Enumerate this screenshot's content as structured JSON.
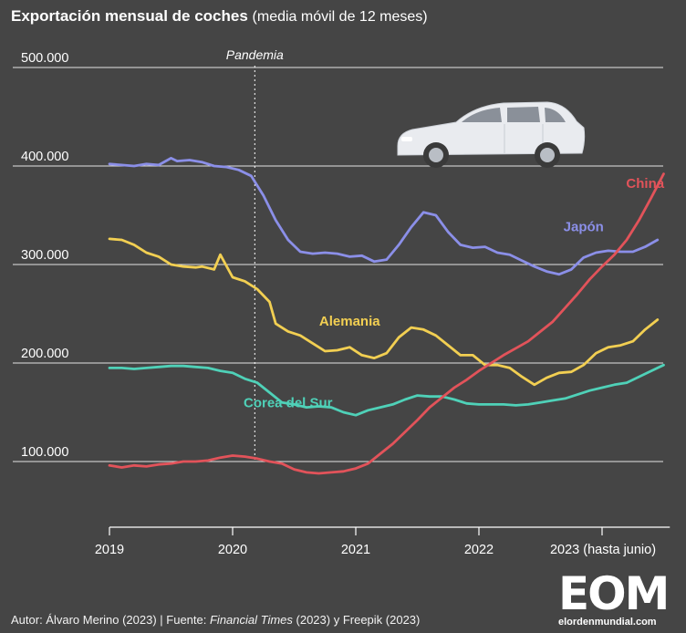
{
  "title": "Exportación mensual de coches",
  "subtitle": "(media móvil de 12 meses)",
  "footer": {
    "author": "Autor: Álvaro Merino (2023) | Fuente: ",
    "source_ft": "Financial Times",
    "source_rest": " (2023) y Freepik (2023)"
  },
  "logo": {
    "mark": "EOM",
    "site": "elordenmundial.com"
  },
  "colors": {
    "background": "#454545",
    "japan": "#8b8fe8",
    "germany": "#f2cf52",
    "korea": "#4fd1b8",
    "china": "#e2535a"
  },
  "icons": [
    "car-illustration"
  ],
  "chart_data": {
    "type": "line",
    "ylim": [
      0,
      500000
    ],
    "y_ticks": [
      "100.000",
      "200.000",
      "300.000",
      "400.000",
      "500.000"
    ],
    "y_tick_values": [
      100000,
      200000,
      300000,
      400000,
      500000
    ],
    "x_ticks": [
      "2019",
      "2020",
      "2021",
      "2022",
      "2023 (hasta junio)"
    ],
    "x_tick_values": [
      2019,
      2020,
      2021,
      2022,
      2023
    ],
    "annotation": {
      "label": "Pandemia",
      "x": 2020.18
    },
    "series": [
      {
        "name": "Japón",
        "color": "#8b8fe8",
        "label_x": 2022.85,
        "label_y": 334000,
        "x": [
          2019.0,
          2019.1,
          2019.2,
          2019.3,
          2019.4,
          2019.5,
          2019.55,
          2019.65,
          2019.75,
          2019.85,
          2019.95,
          2020.05,
          2020.15,
          2020.25,
          2020.35,
          2020.45,
          2020.55,
          2020.65,
          2020.75,
          2020.85,
          2020.95,
          2021.05,
          2021.15,
          2021.25,
          2021.35,
          2021.45,
          2021.55,
          2021.65,
          2021.75,
          2021.85,
          2021.95,
          2022.05,
          2022.15,
          2022.25,
          2022.35,
          2022.45,
          2022.55,
          2022.65,
          2022.75,
          2022.85,
          2022.95,
          2023.05,
          2023.15,
          2023.25,
          2023.35,
          2023.45
        ],
        "y": [
          402000,
          401000,
          400000,
          402000,
          401000,
          408000,
          405000,
          406000,
          404000,
          400000,
          399000,
          396000,
          390000,
          370000,
          345000,
          325000,
          313000,
          311000,
          312000,
          311000,
          308000,
          309000,
          303000,
          305000,
          320000,
          338000,
          353000,
          350000,
          333000,
          320000,
          317000,
          318000,
          312000,
          310000,
          304000,
          298000,
          293000,
          290000,
          295000,
          307000,
          312000,
          314000,
          313000,
          313000,
          318000,
          325000
        ]
      },
      {
        "name": "Alemania",
        "color": "#f2cf52",
        "label_x": 2020.95,
        "label_y": 238000,
        "x": [
          2019.0,
          2019.1,
          2019.2,
          2019.3,
          2019.4,
          2019.5,
          2019.6,
          2019.7,
          2019.75,
          2019.85,
          2019.9,
          2020.0,
          2020.1,
          2020.2,
          2020.3,
          2020.35,
          2020.45,
          2020.55,
          2020.65,
          2020.75,
          2020.85,
          2020.95,
          2021.05,
          2021.15,
          2021.25,
          2021.35,
          2021.45,
          2021.55,
          2021.65,
          2021.75,
          2021.85,
          2021.95,
          2022.05,
          2022.15,
          2022.25,
          2022.35,
          2022.45,
          2022.55,
          2022.65,
          2022.75,
          2022.85,
          2022.95,
          2023.05,
          2023.15,
          2023.25,
          2023.35,
          2023.45
        ],
        "y": [
          326000,
          325000,
          320000,
          312000,
          308000,
          300000,
          298000,
          297000,
          298000,
          295000,
          310000,
          287000,
          283000,
          275000,
          262000,
          240000,
          232000,
          228000,
          220000,
          212000,
          213000,
          216000,
          208000,
          205000,
          210000,
          226000,
          236000,
          234000,
          228000,
          218000,
          208000,
          208000,
          198000,
          198000,
          195000,
          186000,
          178000,
          185000,
          190000,
          191000,
          198000,
          210000,
          216000,
          218000,
          222000,
          234000,
          244000
        ]
      },
      {
        "name": "Corea del Sur",
        "color": "#4fd1b8",
        "label_x": 2020.45,
        "label_y": 155000,
        "x": [
          2019.0,
          2019.1,
          2019.2,
          2019.3,
          2019.4,
          2019.5,
          2019.6,
          2019.7,
          2019.8,
          2019.9,
          2020.0,
          2020.1,
          2020.2,
          2020.3,
          2020.4,
          2020.5,
          2020.6,
          2020.7,
          2020.8,
          2020.9,
          2021.0,
          2021.1,
          2021.2,
          2021.3,
          2021.4,
          2021.5,
          2021.6,
          2021.7,
          2021.8,
          2021.9,
          2022.0,
          2022.1,
          2022.2,
          2022.3,
          2022.4,
          2022.5,
          2022.6,
          2022.7,
          2022.8,
          2022.9,
          2023.0,
          2023.1,
          2023.2,
          2023.3,
          2023.4,
          2023.5
        ],
        "y": [
          195000,
          195000,
          194000,
          195000,
          196000,
          197000,
          197000,
          196000,
          195000,
          192000,
          190000,
          184000,
          180000,
          170000,
          160000,
          158000,
          155000,
          156000,
          155000,
          150000,
          147000,
          152000,
          155000,
          158000,
          163000,
          167000,
          166000,
          166000,
          163000,
          159000,
          158000,
          158000,
          158000,
          157000,
          158000,
          160000,
          162000,
          164000,
          168000,
          172000,
          175000,
          178000,
          180000,
          186000,
          192000,
          198000
        ]
      },
      {
        "name": "China",
        "color": "#e2535a",
        "label_x": 2023.35,
        "label_y": 378000,
        "x": [
          2019.0,
          2019.1,
          2019.2,
          2019.3,
          2019.4,
          2019.5,
          2019.6,
          2019.7,
          2019.8,
          2019.9,
          2020.0,
          2020.1,
          2020.2,
          2020.3,
          2020.4,
          2020.5,
          2020.6,
          2020.7,
          2020.8,
          2020.9,
          2021.0,
          2021.1,
          2021.2,
          2021.3,
          2021.4,
          2021.5,
          2021.6,
          2021.7,
          2021.8,
          2021.9,
          2022.0,
          2022.1,
          2022.2,
          2022.3,
          2022.4,
          2022.5,
          2022.6,
          2022.7,
          2022.8,
          2022.9,
          2023.0,
          2023.1,
          2023.2,
          2023.3,
          2023.4,
          2023.5
        ],
        "y": [
          96000,
          94000,
          96000,
          95000,
          97000,
          98000,
          100000,
          100000,
          101000,
          104000,
          106000,
          105000,
          103000,
          100000,
          98000,
          92000,
          89000,
          88000,
          89000,
          90000,
          93000,
          98000,
          108000,
          118000,
          130000,
          142000,
          155000,
          165000,
          175000,
          183000,
          192000,
          200000,
          208000,
          215000,
          222000,
          232000,
          242000,
          256000,
          270000,
          285000,
          298000,
          310000,
          325000,
          345000,
          368000,
          392000
        ]
      }
    ]
  }
}
